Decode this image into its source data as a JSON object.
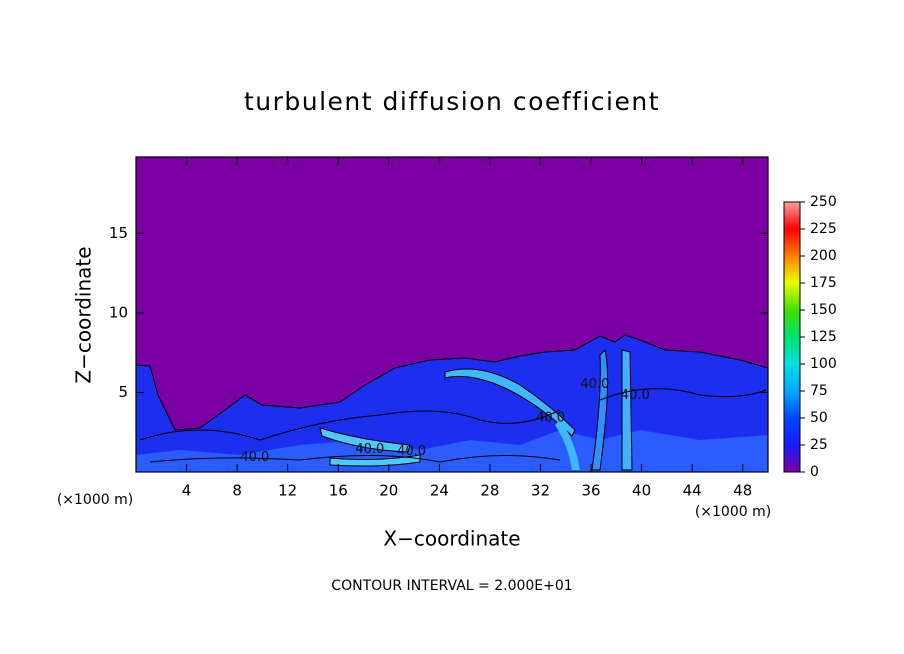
{
  "chart_data": {
    "type": "contour",
    "title": "turbulent diffusion coefficient",
    "x_label": "X−coordinate",
    "y_label": "Z−coordinate",
    "x_unit_left": "(×1000 m)",
    "x_unit_right": "(×1000 m)",
    "note": "CONTOUR INTERVAL = 2.000E+01",
    "xlim": [
      0,
      50
    ],
    "xticks": [
      4,
      8,
      12,
      16,
      20,
      24,
      28,
      32,
      36,
      40,
      44,
      48
    ],
    "ylim": [
      0,
      19.8
    ],
    "yticks": [
      5,
      10,
      15
    ],
    "colorbar": {
      "lim": [
        0,
        250
      ],
      "ticks": [
        0,
        25,
        50,
        75,
        100,
        125,
        150,
        175,
        200,
        225,
        250
      ],
      "colors": [
        "#7a00a4",
        "#1a1aff",
        "#0046ff",
        "#00a8ff",
        "#00e0e0",
        "#00e070",
        "#40e000",
        "#e8ff00",
        "#ff8000",
        "#ff0000",
        "#ff9c9c"
      ]
    },
    "contour_labels": [
      {
        "label": "40.0",
        "x": 18.5,
        "z": 1.4
      },
      {
        "label": "40.0",
        "x": 21.8,
        "z": 1.3
      },
      {
        "label": "40.0",
        "x": 9.4,
        "z": 0.9
      },
      {
        "label": "40.0",
        "x": 36.3,
        "z": 5.5
      },
      {
        "label": "40.0",
        "x": 39.5,
        "z": 4.8
      },
      {
        "label": "40.0",
        "x": 32.8,
        "z": 3.4
      }
    ]
  }
}
